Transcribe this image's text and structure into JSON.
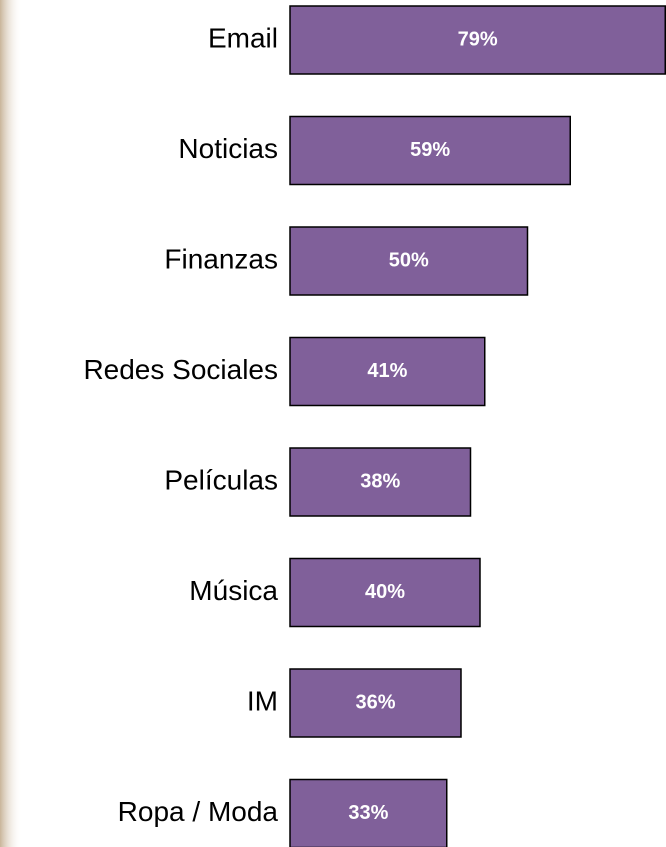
{
  "chart_data": {
    "type": "bar",
    "orientation": "horizontal",
    "categories": [
      "Email",
      "Noticias",
      "Finanzas",
      "Redes Sociales",
      "Películas",
      "Música",
      "IM",
      "Ropa / Moda"
    ],
    "values": [
      79,
      59,
      50,
      41,
      38,
      40,
      36,
      33
    ],
    "value_labels": [
      "79%",
      "59%",
      "50%",
      "41%",
      "38%",
      "40%",
      "36%",
      "33%"
    ],
    "color": "#80609a"
  }
}
